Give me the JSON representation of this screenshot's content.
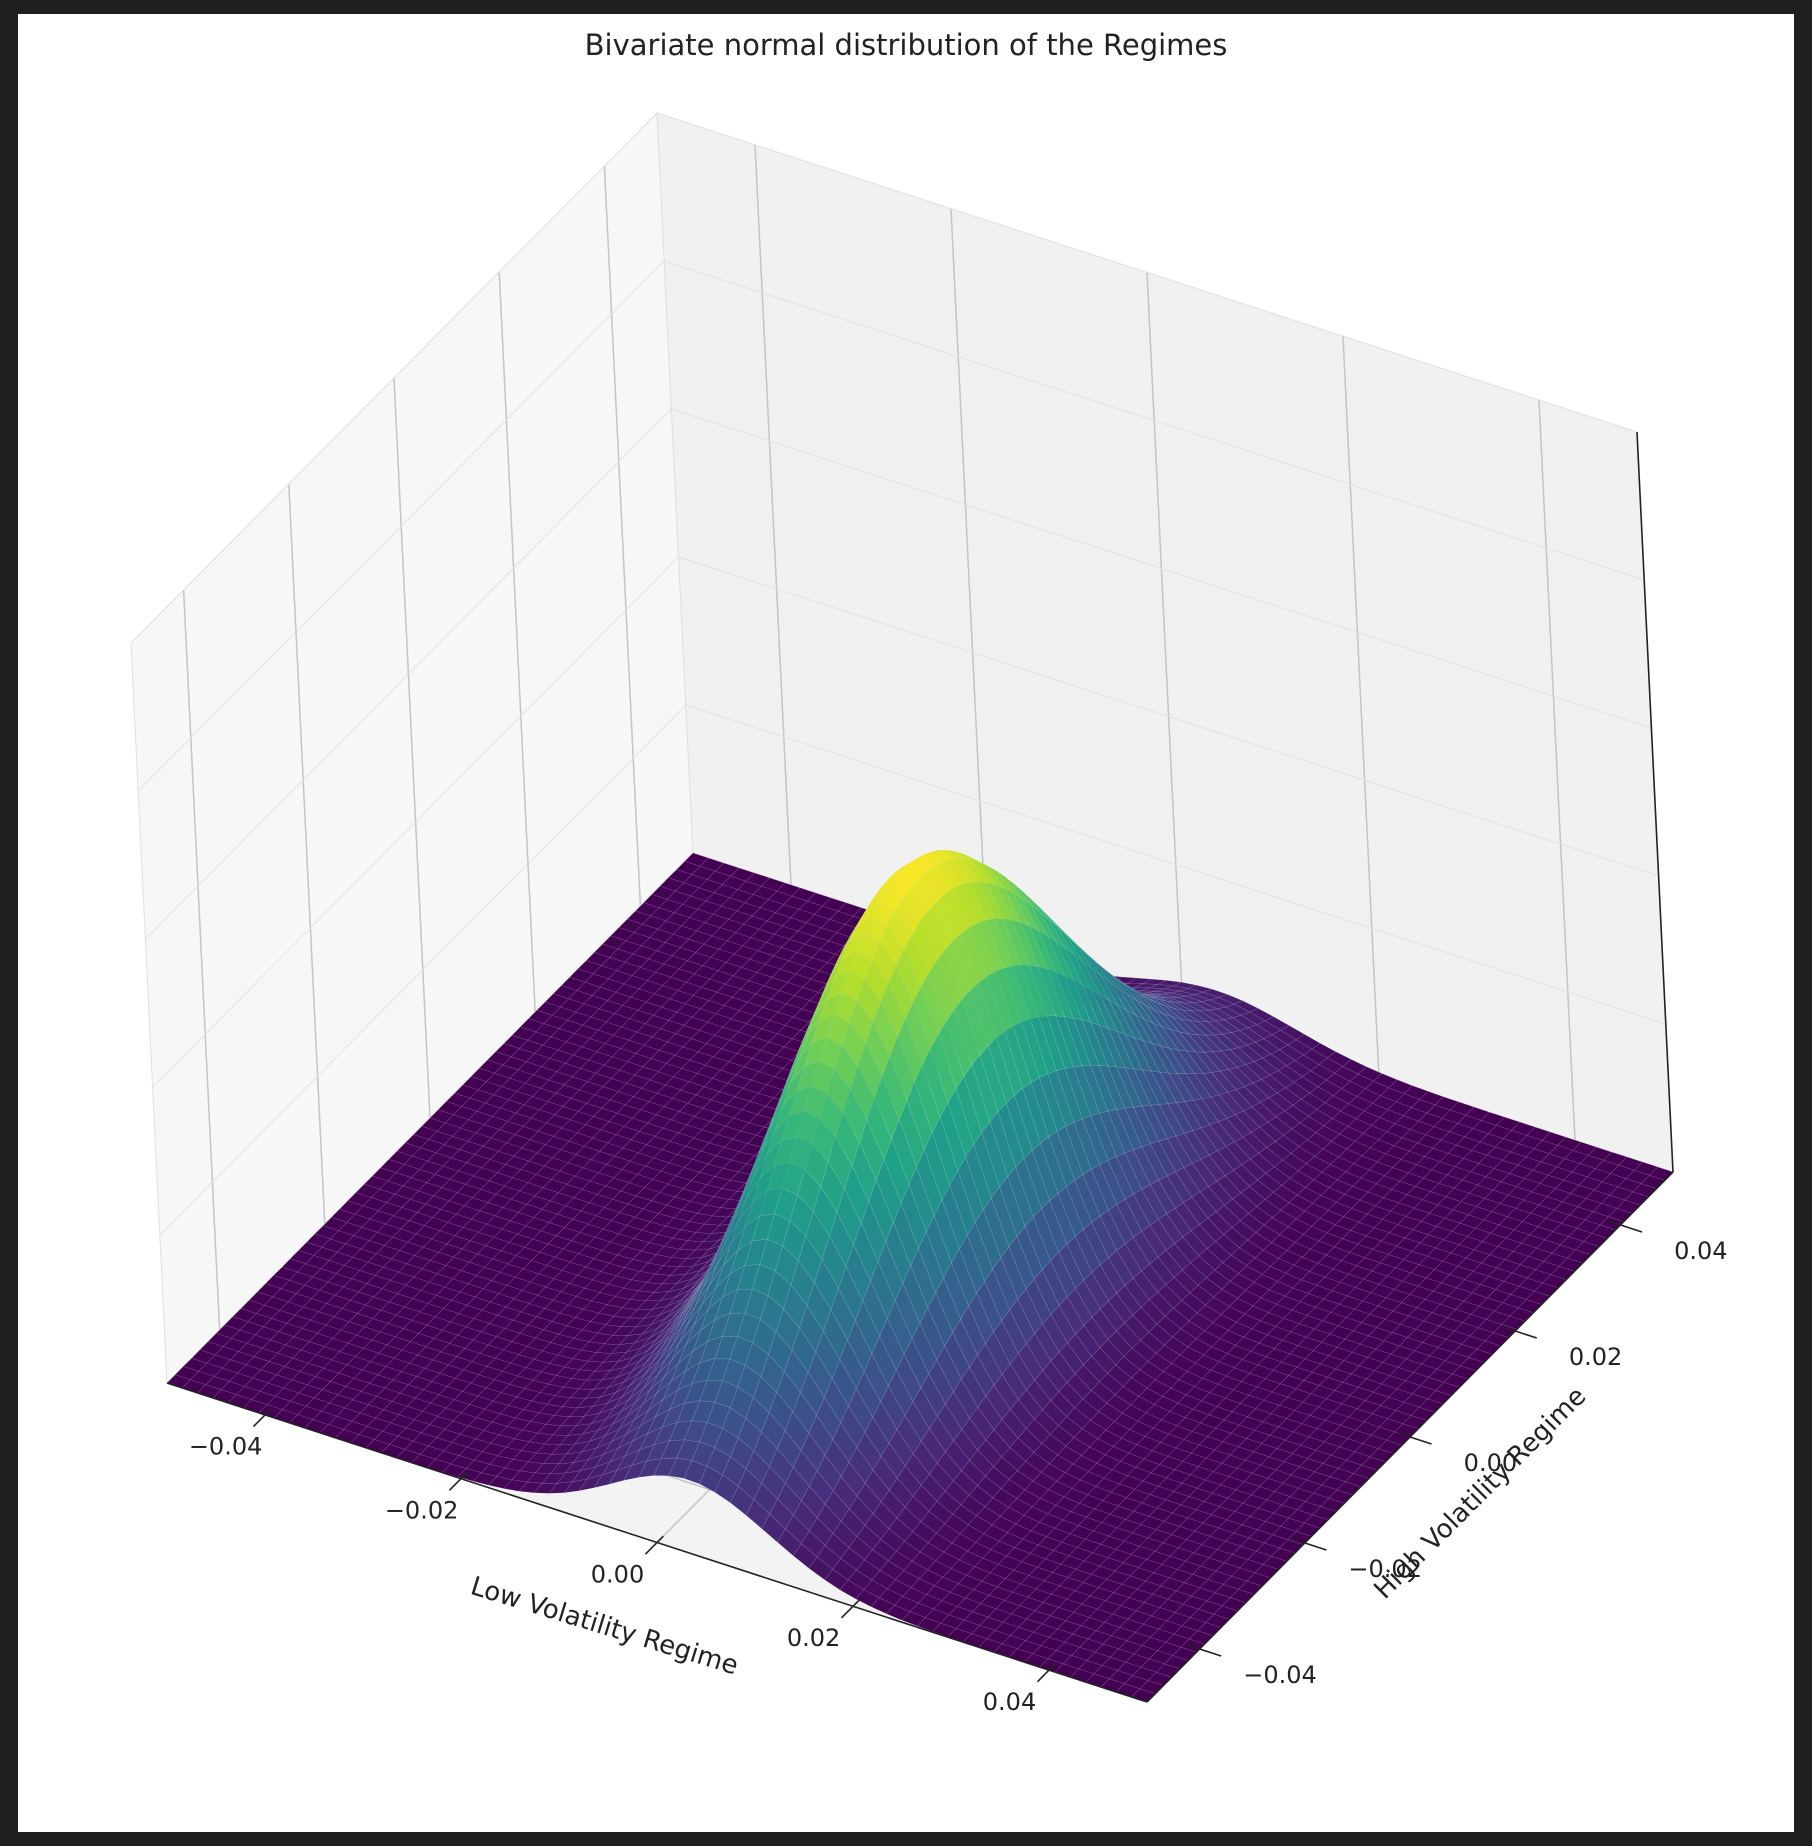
{
  "chart_data": {
    "type": "surface3d",
    "title": "Bivariate normal distribution of the Regimes",
    "xlabel": "Low Volatility Regime",
    "ylabel": "High Volatility Regime",
    "zlabel": "",
    "xlim": [
      -0.05,
      0.05
    ],
    "ylim": [
      -0.05,
      0.05
    ],
    "x_ticks": [
      "−0.04",
      "−0.02",
      "0.00",
      "0.02",
      "0.04"
    ],
    "x_tick_values": [
      -0.04,
      -0.02,
      0.0,
      0.02,
      0.04
    ],
    "y_ticks": [
      "−0.04",
      "−0.02",
      "0.00",
      "0.02",
      "0.04"
    ],
    "y_tick_values": [
      -0.04,
      -0.02,
      0.0,
      0.02,
      0.04
    ],
    "z_ticks": [],
    "colormap": "viridis",
    "grid": true,
    "distribution": {
      "mean_x": 0.0036,
      "mean_y": -0.0046,
      "std_x": 0.008,
      "std_y": 0.024,
      "correlation": 0.0
    }
  }
}
